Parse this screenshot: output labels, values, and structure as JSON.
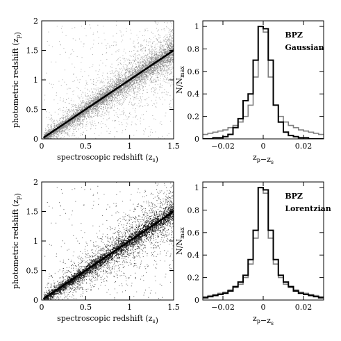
{
  "chart_data": [
    {
      "type": "scatter",
      "panel": "top-left",
      "xlabel": "spectroscopic redshift (z_s)",
      "ylabel": "photometric redshift (z_p)",
      "xlim": [
        0,
        1.5
      ],
      "ylim": [
        0,
        2
      ],
      "xticks": [
        "0",
        "0.5",
        "1",
        "1.5"
      ],
      "yticks": [
        "0",
        "0.5",
        "1",
        "1.5",
        "2"
      ],
      "point_color": "#8a8a8a",
      "line_color": "#000000",
      "line": {
        "x": [
          0.02,
          1.5
        ],
        "y": [
          0.02,
          1.5
        ]
      },
      "scatter_width": 0.08
    },
    {
      "type": "line",
      "panel": "top-right",
      "xlabel": "z_p−z_s",
      "ylabel": "N/N_max",
      "xlim": [
        -0.03,
        0.03
      ],
      "ylim": [
        0,
        1.05
      ],
      "xticks": [
        "−0.02",
        "0",
        "0.02"
      ],
      "yticks": [
        "0",
        "0.2",
        "0.4",
        "0.6",
        "0.8",
        "1"
      ],
      "legend": [
        "BPZ",
        "Gaussian"
      ],
      "series": [
        {
          "color": "#808080",
          "values": [
            0.04,
            0.05,
            0.06,
            0.07,
            0.08,
            0.1,
            0.12,
            0.15,
            0.2,
            0.3,
            0.55,
            1.0,
            0.95,
            0.55,
            0.3,
            0.2,
            0.15,
            0.12,
            0.1,
            0.08,
            0.07,
            0.06,
            0.05,
            0.04
          ]
        },
        {
          "color": "#000000",
          "values": [
            0.0,
            0.0,
            0.01,
            0.01,
            0.02,
            0.04,
            0.1,
            0.18,
            0.34,
            0.4,
            0.7,
            1.0,
            0.98,
            0.7,
            0.3,
            0.15,
            0.06,
            0.03,
            0.02,
            0.01,
            0.01,
            0.0,
            0.0,
            0.0
          ]
        }
      ],
      "bin_edges_from": -0.03,
      "bin_width": 0.0025
    },
    {
      "type": "scatter",
      "panel": "bottom-left",
      "xlabel": "spectroscopic redshift (z_s)",
      "ylabel": "photometric redshift (z_p)",
      "xlim": [
        0,
        1.5
      ],
      "ylim": [
        0,
        2
      ],
      "xticks": [
        "0",
        "0.5",
        "1",
        "1.5"
      ],
      "yticks": [
        "0",
        "0.5",
        "1",
        "1.5",
        "2"
      ],
      "point_color": "#1a1a1a",
      "line_color": "#000000",
      "line": {
        "x": [
          0.02,
          1.5
        ],
        "y": [
          0.02,
          1.5
        ]
      },
      "scatter_width": 0.1
    },
    {
      "type": "line",
      "panel": "bottom-right",
      "xlabel": "z_p−z_s",
      "ylabel": "N/N_max",
      "xlim": [
        -0.03,
        0.03
      ],
      "ylim": [
        0,
        1.05
      ],
      "xticks": [
        "−0.02",
        "0",
        "0.02"
      ],
      "yticks": [
        "0",
        "0.2",
        "0.4",
        "0.6",
        "0.8",
        "1"
      ],
      "legend": [
        "BPZ",
        "Lorentzian"
      ],
      "series": [
        {
          "color": "#808080",
          "values": [
            0.03,
            0.04,
            0.05,
            0.06,
            0.07,
            0.09,
            0.11,
            0.14,
            0.2,
            0.32,
            0.55,
            1.0,
            0.95,
            0.55,
            0.32,
            0.2,
            0.14,
            0.11,
            0.09,
            0.07,
            0.06,
            0.05,
            0.04,
            0.03
          ]
        },
        {
          "color": "#000000",
          "values": [
            0.02,
            0.03,
            0.04,
            0.05,
            0.06,
            0.08,
            0.12,
            0.16,
            0.22,
            0.36,
            0.62,
            1.0,
            0.98,
            0.62,
            0.36,
            0.22,
            0.16,
            0.12,
            0.08,
            0.06,
            0.05,
            0.04,
            0.03,
            0.02
          ]
        }
      ],
      "bin_edges_from": -0.03,
      "bin_width": 0.0025
    }
  ]
}
